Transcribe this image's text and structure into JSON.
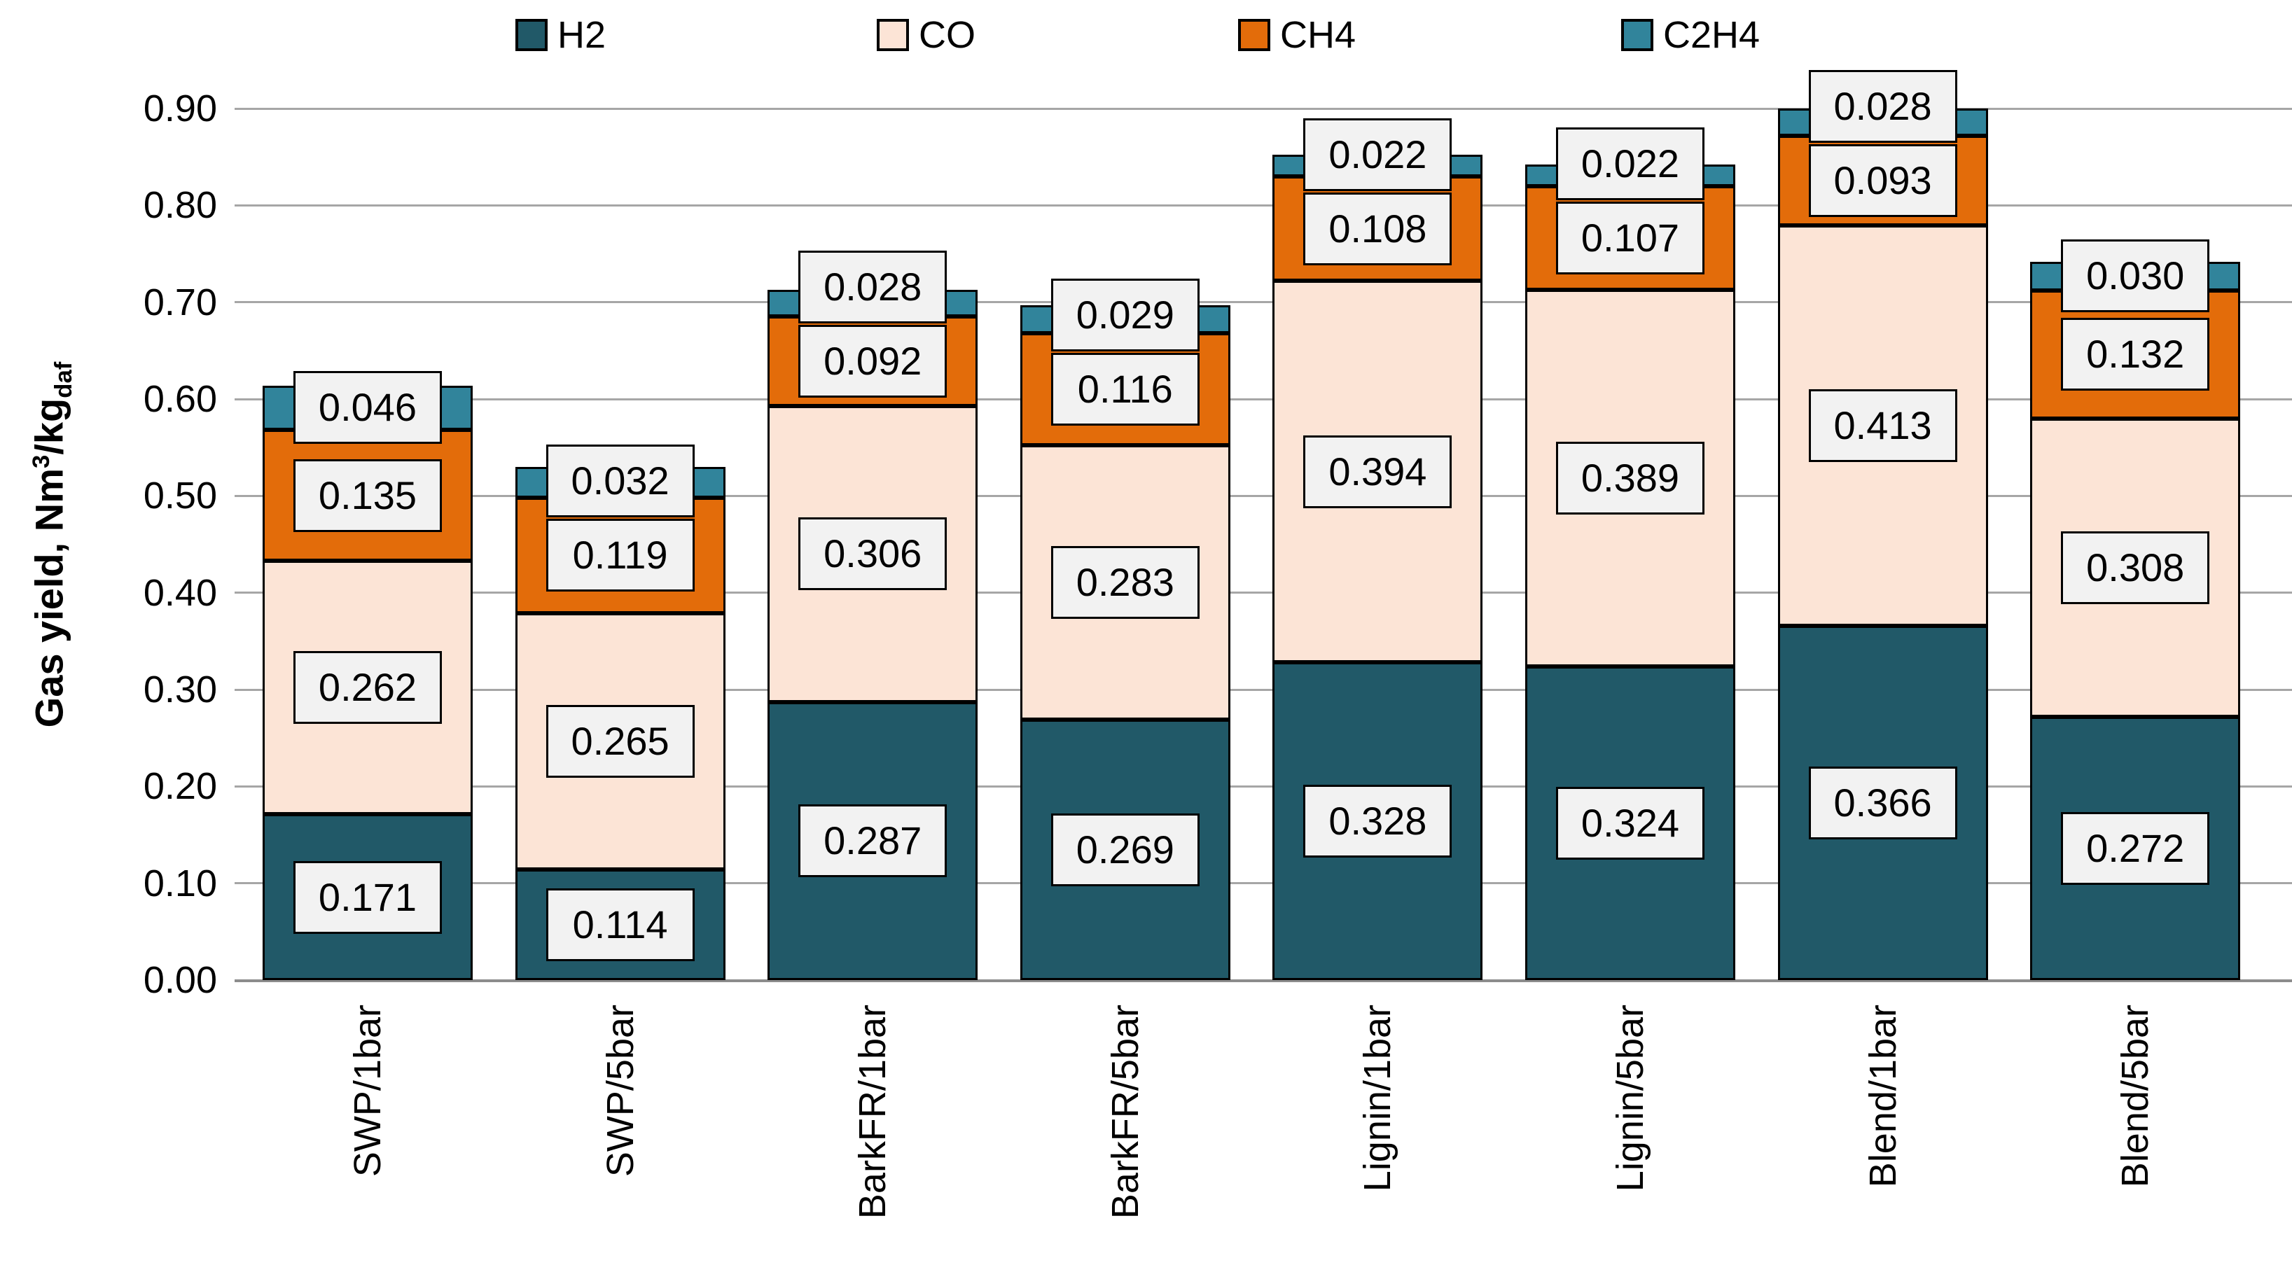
{
  "axis": {
    "y_title_prefix": "Gas yield, Nm",
    "y_title_sup": "3",
    "y_title_mid": "/kg",
    "y_title_sub": "daf"
  },
  "chart_data": {
    "type": "bar",
    "stacked": true,
    "title": "",
    "xlabel": "",
    "ylabel": "Gas yield, Nm3/kg daf",
    "ylim": [
      0,
      0.9
    ],
    "grid": true,
    "legend_position": "top",
    "yticks": [
      "0.00",
      "0.10",
      "0.20",
      "0.30",
      "0.40",
      "0.50",
      "0.60",
      "0.70",
      "0.80",
      "0.90"
    ],
    "categories": [
      "SWP/1bar",
      "SWP/5bar",
      "BarkFR/1bar",
      "BarkFR/5bar",
      "Lignin/1bar",
      "Lignin/5bar",
      "Blend/1bar",
      "Blend/5bar"
    ],
    "series": [
      {
        "name": "H2",
        "color": "#215968",
        "values": [
          0.171,
          0.114,
          0.287,
          0.269,
          0.328,
          0.324,
          0.366,
          0.272
        ],
        "labels": [
          "0.171",
          "0.114",
          "0.287",
          "0.269",
          "0.328",
          "0.324",
          "0.366",
          "0.272"
        ]
      },
      {
        "name": "CO",
        "color": "#FCE4D6",
        "values": [
          0.262,
          0.265,
          0.306,
          0.283,
          0.394,
          0.389,
          0.413,
          0.308
        ],
        "labels": [
          "0.262",
          "0.265",
          "0.306",
          "0.283",
          "0.394",
          "0.389",
          "0.413",
          "0.308"
        ]
      },
      {
        "name": "CH4",
        "color": "#E36C0A",
        "values": [
          0.135,
          0.119,
          0.092,
          0.116,
          0.108,
          0.107,
          0.093,
          0.132
        ],
        "labels": [
          "0.135",
          "0.119",
          "0.092",
          "0.116",
          "0.108",
          "0.107",
          "0.093",
          "0.132"
        ]
      },
      {
        "name": "C2H4",
        "color": "#31849B",
        "values": [
          0.046,
          0.032,
          0.028,
          0.029,
          0.022,
          0.022,
          0.028,
          0.03
        ],
        "labels": [
          "0.046",
          "0.032",
          "0.028",
          "0.029",
          "0.022",
          "0.022",
          "0.028",
          "0.030"
        ]
      }
    ]
  },
  "styles": {
    "grid_color": "#a6a6a6",
    "baseline_color": "#8c8c8c",
    "label_box_bg": "#f2f2f2",
    "label_box_border": "#000000",
    "background": "#ffffff"
  }
}
